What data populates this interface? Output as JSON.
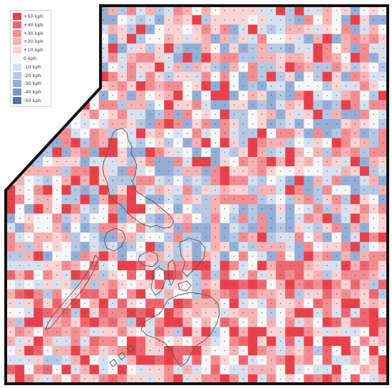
{
  "map": {
    "legend": {
      "items": [
        {
          "label": "+50 kph",
          "value": 50,
          "color": "#e8414c"
        },
        {
          "label": "+40 kph",
          "value": 40,
          "color": "#ee6770"
        },
        {
          "label": "+30 kph",
          "value": 30,
          "color": "#f28d92"
        },
        {
          "label": "+20 kph",
          "value": 20,
          "color": "#f6b2b4"
        },
        {
          "label": "+10 kph",
          "value": 10,
          "color": "#f9d4d5"
        },
        {
          "label": "0 kph",
          "value": 0,
          "color": "#f7f7f7"
        },
        {
          "label": "-10 kph",
          "value": -10,
          "color": "#d7e0ee"
        },
        {
          "label": "-20 kph",
          "value": -20,
          "color": "#b6c8e3"
        },
        {
          "label": "-30 kph",
          "value": -30,
          "color": "#94aed6"
        },
        {
          "label": "-40 kph",
          "value": -40,
          "color": "#7897c9"
        },
        {
          "label": "-50 kph",
          "value": -50,
          "color": "#4f74b5"
        }
      ]
    },
    "colors": {
      "border": "#111111",
      "coastline": "#555555",
      "positive": "#e8414c",
      "negative": "#4f74b5",
      "neutral": "#f7f7f7"
    }
  }
}
